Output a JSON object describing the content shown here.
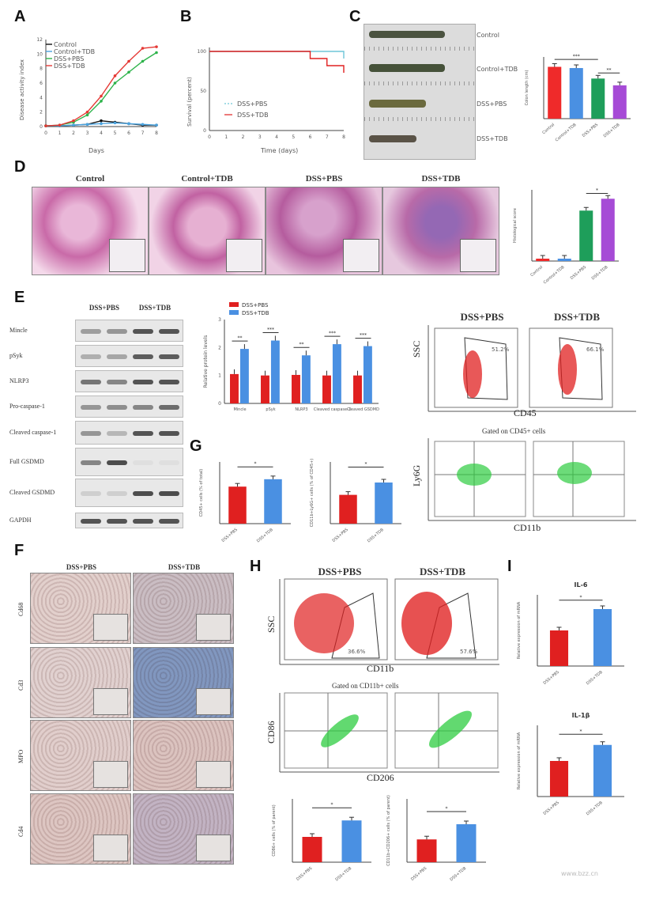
{
  "panels": {
    "A": {
      "letter": "A",
      "legend": [
        "Control",
        "Control+TDB",
        "DSS+PBS",
        "DSS+TDB"
      ],
      "xlabel": "Days",
      "ylabel": "Disease activity index"
    },
    "B": {
      "letter": "B",
      "legend": [
        "DSS+PBS",
        "DSS+TDB"
      ],
      "xlabel": "Time (days)",
      "ylabel": "Survival (percent)"
    },
    "C": {
      "letter": "C",
      "photo_labels": [
        "Control",
        "Control+TDB",
        "DSS+PBS",
        "DSS+TDB"
      ],
      "ylabel": "Colon length (cm)",
      "sig": [
        "***",
        "**"
      ]
    },
    "D": {
      "letter": "D",
      "columns": [
        "Control",
        "Control+TDB",
        "DSS+PBS",
        "DSS+TDB"
      ],
      "ylabel": "Histological score",
      "sig": "*"
    },
    "E": {
      "letter": "E",
      "wb_groups": [
        "DSS+PBS",
        "DSS+TDB"
      ],
      "wb_rows": [
        "Mincle",
        "pSyk",
        "NLRP3",
        "Pro-caspase-1",
        "Cleaved caspase-1",
        "Full GSDMD",
        "Cleaved GSDMD",
        "GAPDH"
      ],
      "legend": [
        "DSS+PBS",
        "DSS+TDB"
      ],
      "ylabel": "Relative protein levels",
      "categories": [
        "Mincle",
        "pSyk",
        "NLRP3",
        "Cleaved caspase-1",
        "Cleaved GSDMD"
      ],
      "sig": [
        "**",
        "***",
        "**",
        "***",
        "***"
      ],
      "flow_titles": [
        "DSS+PBS",
        "DSS+TDB"
      ],
      "flow_x": "CD45",
      "flow_y": "SSC",
      "gate_values": [
        "51.2%",
        "66.1%"
      ],
      "gated_title": "Gated on CD45+ cells",
      "gated_x": "CD11b",
      "gated_y": "Ly6G"
    },
    "F": {
      "letter": "F",
      "columns": [
        "DSS+PBS",
        "DSS+TDB"
      ],
      "rows": [
        "Cd68",
        "Cd3",
        "MPO",
        "Cd4"
      ]
    },
    "G": {
      "letter": "G",
      "ylabel_left": "CD45+ cells (% of total)",
      "ylabel_right": "CD11b+Ly6G+ cells (% of CD45+)",
      "sig": [
        "*",
        "*"
      ]
    },
    "H": {
      "letter": "H",
      "flow_titles": [
        "DSS+PBS",
        "DSS+TDB"
      ],
      "flow_x": "CD11b",
      "flow_y": "SSC",
      "gate_values": [
        "36.6%",
        "57.6%"
      ],
      "gated_title": "Gated on CD11b+ cells",
      "gated_x": "CD206",
      "gated_y": "CD86",
      "ylabel_left": "CD86+ cells (% of parent)",
      "ylabel_right": "CD11b+CD206+ cells (% of parent)",
      "sig": [
        "*",
        "*"
      ]
    },
    "I": {
      "letter": "I",
      "titles": [
        "IL-6",
        "IL-1β"
      ],
      "ylabel": "Relative expression of mRNA",
      "sig": [
        "*",
        "*"
      ]
    }
  },
  "colors": {
    "pbs": "#e02020",
    "tdb": "#4a90e2",
    "control": "#111111",
    "control_tdb": "#4aa3df",
    "dss_pbs": "#2db34a",
    "dss_tdb": "#e53935",
    "purple": "#a64bd6",
    "green": "#1e9e5a"
  },
  "watermark": "www.bzz.cn",
  "chart_data": [
    {
      "type": "line",
      "panel": "A",
      "x": [
        0,
        1,
        2,
        3,
        4,
        5,
        6,
        7,
        8
      ],
      "xlabel": "Days",
      "ylabel": "Disease activity index",
      "ylim": [
        0,
        12
      ],
      "series": [
        {
          "name": "Control",
          "values": [
            0.1,
            0.1,
            0.2,
            0.3,
            0.8,
            0.6,
            0.4,
            0.2,
            0.2
          ]
        },
        {
          "name": "Control+TDB",
          "values": [
            0.1,
            0.1,
            0.2,
            0.3,
            0.4,
            0.5,
            0.4,
            0.3,
            0.2
          ]
        },
        {
          "name": "DSS+PBS",
          "values": [
            0.1,
            0.2,
            0.6,
            1.6,
            3.5,
            6.0,
            7.5,
            9.0,
            10.2
          ]
        },
        {
          "name": "DSS+TDB",
          "values": [
            0.1,
            0.2,
            0.8,
            2.0,
            4.2,
            7.0,
            9.0,
            10.8,
            11.0
          ]
        }
      ]
    },
    {
      "type": "line",
      "panel": "B",
      "x": [
        0,
        1,
        2,
        3,
        4,
        5,
        6,
        7,
        8
      ],
      "xlabel": "Time (days)",
      "ylabel": "Survival (percent)",
      "ylim": [
        0,
        100
      ],
      "series": [
        {
          "name": "DSS+PBS",
          "values": [
            100,
            100,
            100,
            100,
            100,
            100,
            100,
            100,
            91
          ]
        },
        {
          "name": "DSS+TDB",
          "values": [
            100,
            100,
            100,
            100,
            100,
            100,
            91,
            82,
            73
          ]
        }
      ]
    },
    {
      "type": "bar",
      "panel": "C",
      "categories": [
        "Control",
        "Control+TDB",
        "DSS+PBS",
        "DSS+TDB"
      ],
      "values": [
        8.4,
        8.2,
        6.5,
        5.4
      ],
      "ylim": [
        0,
        10
      ],
      "ylabel": "Colon length (cm)"
    },
    {
      "type": "bar",
      "panel": "D",
      "categories": [
        "Control",
        "Control+TDB",
        "DSS+PBS",
        "DSS+TDB"
      ],
      "values": [
        0.4,
        0.4,
        8.5,
        10.5
      ],
      "ylim": [
        0,
        12
      ],
      "ylabel": "Histological score"
    },
    {
      "type": "bar",
      "panel": "E",
      "categories": [
        "Mincle",
        "pSyk",
        "NLRP3",
        "Cleaved caspase-1",
        "Cleaved GSDMD"
      ],
      "ylabel": "Relative protein levels",
      "ylim": [
        0,
        3
      ],
      "series": [
        {
          "name": "DSS+PBS",
          "values": [
            1.05,
            1.0,
            1.02,
            1.0,
            1.0
          ]
        },
        {
          "name": "DSS+TDB",
          "values": [
            1.95,
            2.25,
            1.72,
            2.12,
            2.05
          ]
        }
      ]
    },
    {
      "type": "bar",
      "panel": "G-left",
      "categories": [
        "DSS+PBS",
        "DSS+TDB"
      ],
      "values": [
        60,
        72
      ],
      "ylim": [
        0,
        100
      ],
      "ylabel": "CD45+ cells (% of total)"
    },
    {
      "type": "bar",
      "panel": "G-right",
      "categories": [
        "DSS+PBS",
        "DSS+TDB"
      ],
      "values": [
        28,
        40
      ],
      "ylim": [
        0,
        60
      ],
      "ylabel": "CD11b+Ly6G+ cells (% of CD45+)"
    },
    {
      "type": "bar",
      "panel": "H-left",
      "categories": [
        "DSS+PBS",
        "DSS+TDB"
      ],
      "values": [
        20,
        33
      ],
      "ylim": [
        0,
        50
      ],
      "ylabel": "CD86+ cells (% of parent)"
    },
    {
      "type": "bar",
      "panel": "H-right",
      "categories": [
        "DSS+PBS",
        "DSS+TDB"
      ],
      "values": [
        18,
        30
      ],
      "ylim": [
        0,
        50
      ],
      "ylabel": "CD11b+CD206+ cells (% of parent)"
    },
    {
      "type": "bar",
      "panel": "I-top",
      "title": "IL-6",
      "categories": [
        "DSS+PBS",
        "DSS+TDB"
      ],
      "values": [
        1.0,
        1.6
      ],
      "ylim": [
        0,
        2.0
      ],
      "ylabel": "Relative expression of mRNA"
    },
    {
      "type": "bar",
      "panel": "I-bottom",
      "title": "IL-1β",
      "categories": [
        "DSS+PBS",
        "DSS+TDB"
      ],
      "values": [
        1.0,
        1.45
      ],
      "ylim": [
        0,
        2.0
      ],
      "ylabel": "Relative expression of mRNA"
    }
  ]
}
